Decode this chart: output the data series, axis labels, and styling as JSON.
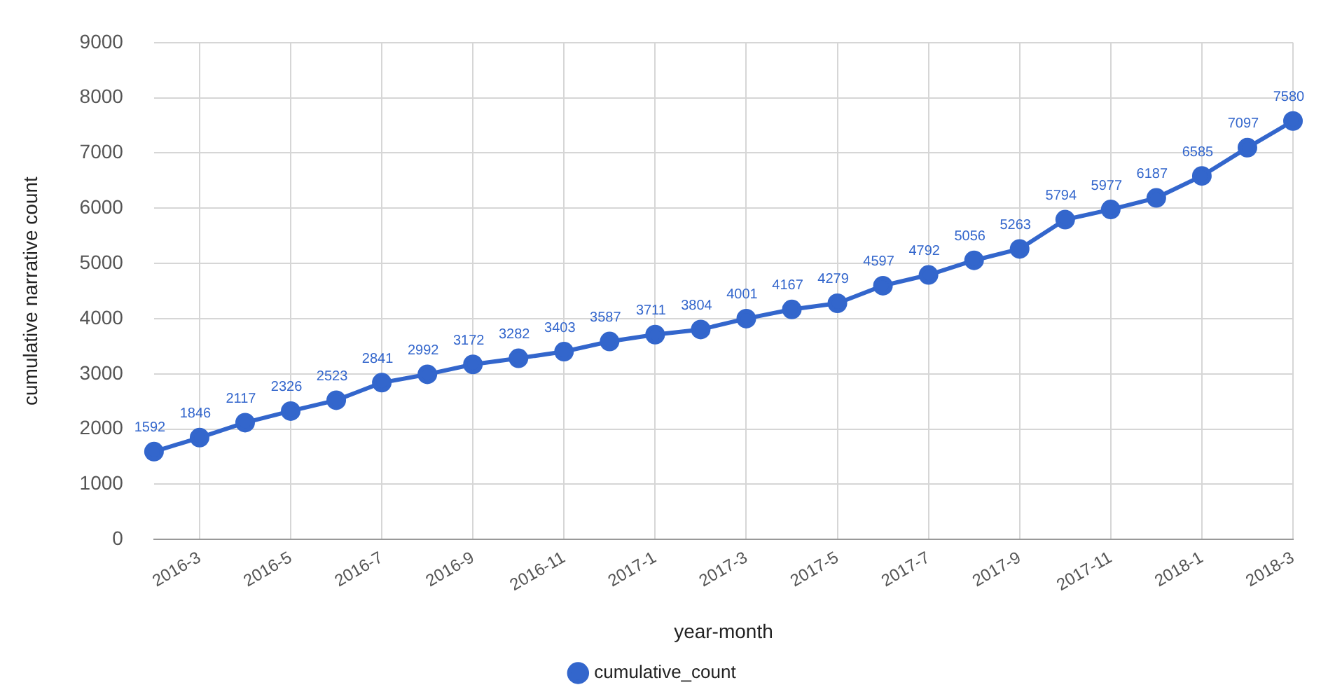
{
  "chart_data": {
    "type": "line",
    "xlabel": "year-month",
    "ylabel": "cumulative narrative count",
    "categories": [
      null,
      "2016-3",
      null,
      "2016-5",
      null,
      "2016-7",
      null,
      "2016-9",
      null,
      "2016-11",
      null,
      "2017-1",
      null,
      "2017-3",
      null,
      "2017-5",
      null,
      "2017-7",
      null,
      "2017-9",
      null,
      "2017-11",
      null,
      "2018-1",
      null,
      "2018-3"
    ],
    "series": [
      {
        "name": "cumulative_count",
        "color": "#3366cc",
        "values": [
          1592,
          1846,
          2117,
          2326,
          2523,
          2841,
          2992,
          3172,
          3282,
          3403,
          3587,
          3711,
          3804,
          4001,
          4167,
          4279,
          4597,
          4792,
          5056,
          5263,
          5794,
          5977,
          6187,
          6585,
          7097,
          7580
        ]
      }
    ],
    "ylim": [
      0,
      9000
    ],
    "yticks": [
      0,
      1000,
      2000,
      3000,
      4000,
      5000,
      6000,
      7000,
      8000,
      9000
    ],
    "grid": true,
    "legend": "bottom",
    "marker": "circle",
    "line_style": "solid",
    "data_labels": true
  }
}
